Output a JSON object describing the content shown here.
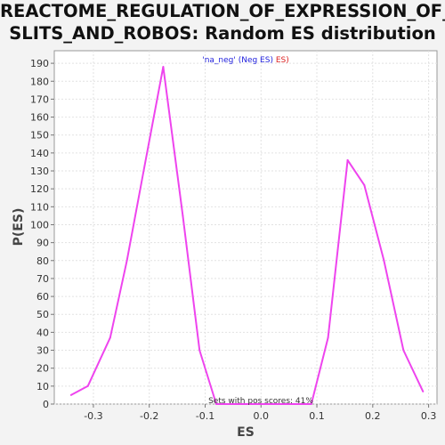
{
  "chart_data": {
    "type": "line",
    "title_lines": [
      "REACTOME_REGULATION_OF_EXPRESSION_OF_",
      "SLITS_AND_ROBOS: Random ES distribution"
    ],
    "xlabel": "ES",
    "ylabel": "P(ES)",
    "xlim": [
      -0.37,
      0.315
    ],
    "ylim": [
      0,
      197
    ],
    "x_ticks": [
      -0.3,
      -0.2,
      -0.1,
      0.0,
      0.1,
      0.2,
      0.3
    ],
    "x_tick_labels": [
      "-0.3",
      "-0.2",
      "-0.1",
      "0.0",
      "0.1",
      "0.2",
      "0.3"
    ],
    "y_ticks": [
      0,
      10,
      20,
      30,
      40,
      50,
      60,
      70,
      80,
      90,
      100,
      110,
      120,
      130,
      140,
      150,
      160,
      170,
      180,
      190
    ],
    "grid": true,
    "legend": {
      "placement": "top-center",
      "parts": [
        {
          "text": "'na_neg' ",
          "color": "#2222dd"
        },
        {
          "text": "(Neg ES) ",
          "color": "#2222dd"
        },
        {
          "text": "ES)",
          "color": "#dd2222"
        }
      ]
    },
    "annotation": "Sets with pos scores: 41%",
    "series": [
      {
        "color": "#ee44ee",
        "x": [
          -0.34,
          -0.31,
          -0.27,
          -0.24,
          -0.21,
          -0.175,
          -0.14,
          -0.11,
          -0.08,
          0.09,
          0.12,
          0.155,
          0.185,
          0.22,
          0.255,
          0.29
        ],
        "y": [
          5,
          10,
          37,
          80,
          130,
          188,
          105,
          30,
          0,
          0,
          37,
          136,
          122,
          80,
          30,
          7
        ]
      }
    ]
  }
}
